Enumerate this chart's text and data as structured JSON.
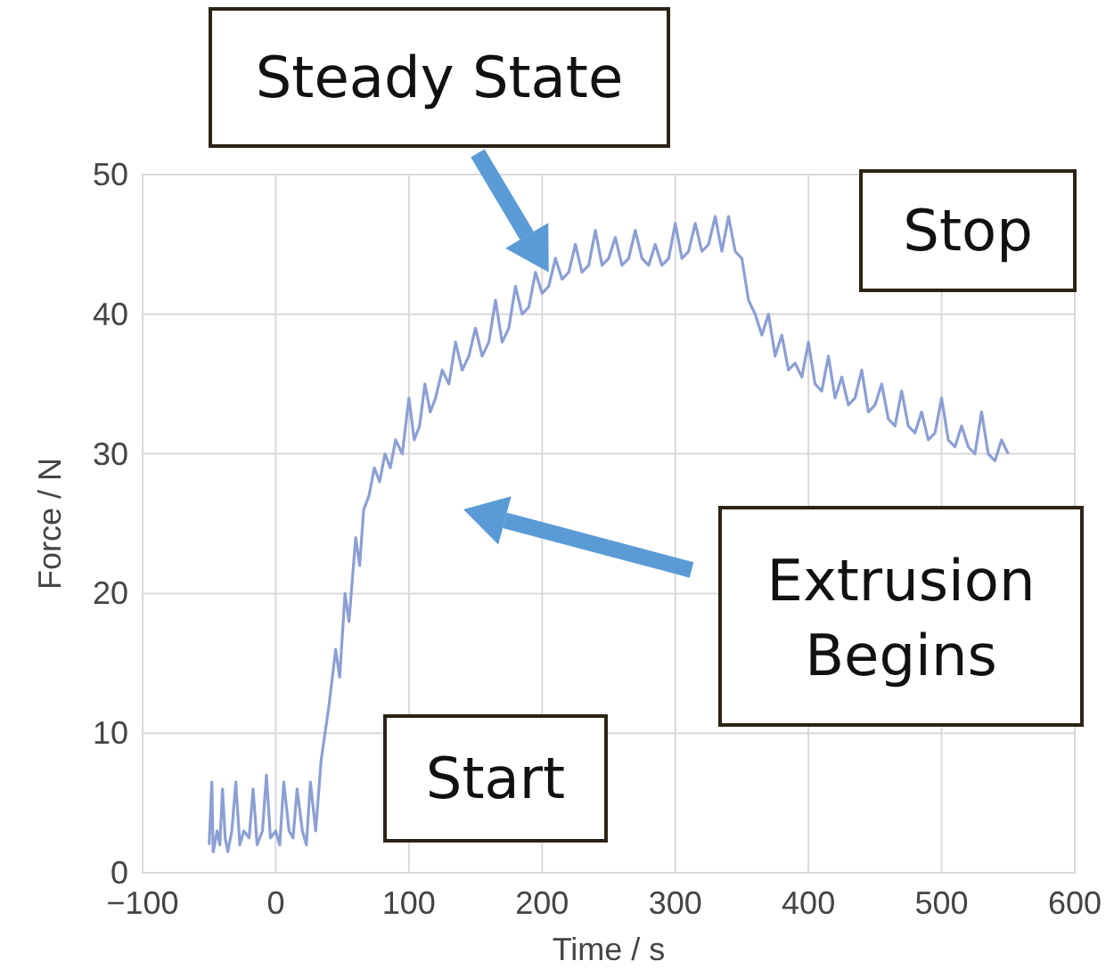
{
  "chart_data": {
    "type": "line",
    "xlabel": "Time / s",
    "ylabel": "Force / N",
    "xlim": [
      -100,
      600
    ],
    "xticks": [
      -100,
      0,
      100,
      200,
      300,
      400,
      500,
      600
    ],
    "ylim": [
      0,
      50
    ],
    "yticks": [
      0,
      10,
      20,
      30,
      40,
      50
    ],
    "grid": true,
    "line_style": "solid",
    "marker": "none",
    "series": [
      {
        "color": "#8c9fd4",
        "x": [
          -50,
          -48,
          -47,
          -44,
          -42,
          -40,
          -38,
          -36,
          -33,
          -30,
          -27,
          -24,
          -20,
          -17,
          -14,
          -10,
          -7,
          -4,
          0,
          3,
          6,
          10,
          13,
          16,
          20,
          23,
          26,
          30,
          34,
          40,
          45,
          48,
          52,
          55,
          60,
          63,
          66,
          70,
          74,
          78,
          82,
          86,
          90,
          95,
          100,
          104,
          108,
          112,
          116,
          120,
          125,
          130,
          135,
          140,
          145,
          150,
          155,
          160,
          165,
          170,
          175,
          180,
          185,
          190,
          195,
          200,
          205,
          210,
          215,
          220,
          225,
          230,
          235,
          240,
          245,
          250,
          255,
          260,
          265,
          270,
          275,
          280,
          285,
          290,
          295,
          300,
          305,
          310,
          315,
          320,
          325,
          330,
          335,
          340,
          345,
          350,
          355,
          360,
          365,
          370,
          375,
          380,
          385,
          390,
          395,
          400,
          405,
          410,
          415,
          420,
          425,
          430,
          435,
          440,
          445,
          450,
          455,
          460,
          465,
          470,
          475,
          480,
          485,
          490,
          495,
          500,
          505,
          510,
          515,
          520,
          525,
          530,
          535,
          540,
          545,
          550
        ],
        "values": [
          2,
          6.5,
          1.5,
          3,
          2,
          6,
          2.5,
          1.5,
          3,
          6.5,
          2,
          3,
          2.5,
          6,
          2,
          3,
          7,
          2.5,
          3,
          2,
          6.5,
          3,
          2.5,
          6,
          3,
          2,
          6.5,
          3,
          8,
          12,
          16,
          14,
          20,
          18,
          24,
          22,
          26,
          27,
          29,
          28,
          30,
          29,
          31,
          30,
          34,
          31,
          32,
          35,
          33,
          34,
          36,
          35,
          38,
          36,
          37,
          39,
          37,
          38,
          41,
          38,
          39,
          42,
          40,
          40.5,
          43,
          41.5,
          42,
          44,
          42.5,
          43,
          45,
          43,
          43.5,
          46,
          43.5,
          44,
          45.5,
          43.5,
          44,
          46,
          44,
          43.5,
          45,
          43.5,
          44,
          46.5,
          44,
          44.5,
          46.5,
          44.5,
          45,
          47,
          44.5,
          47,
          44.5,
          44,
          41,
          40,
          38.5,
          40,
          37,
          38.5,
          36,
          36.5,
          35.5,
          38,
          35,
          34.5,
          37,
          34,
          35.5,
          33.5,
          34,
          36,
          33,
          33.5,
          35,
          32.5,
          32,
          34.5,
          32,
          31.5,
          33,
          31,
          31.5,
          34,
          31,
          30.5,
          32,
          30.5,
          30,
          33,
          30,
          29.5,
          31,
          30
        ]
      }
    ],
    "annotations": [
      {
        "text": "Steady State",
        "x": 205,
        "y": 43
      },
      "Stop",
      "Extrusion Begins",
      "Start"
    ]
  }
}
